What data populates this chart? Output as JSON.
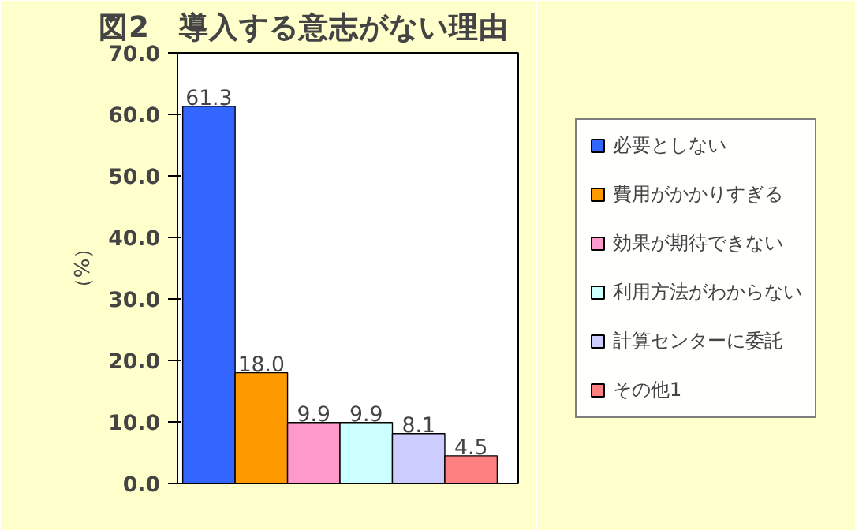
{
  "chart_data": {
    "type": "bar",
    "title": "図2　導入する意志がない理由",
    "ylabel": "（%）",
    "categories": [
      null
    ],
    "series": [
      {
        "name": "必要としない",
        "color": "#3366ff",
        "values": [
          61.3
        ],
        "value_labels": [
          "61.3"
        ]
      },
      {
        "name": "費用がかかりすぎる",
        "color": "#ff9900",
        "values": [
          18.0
        ],
        "value_labels": [
          "18.0"
        ]
      },
      {
        "name": "効果が期待できない",
        "color": "#ff99cc",
        "values": [
          9.9
        ],
        "value_labels": [
          "9.9"
        ]
      },
      {
        "name": "利用方法がわからない",
        "color": "#ccffff",
        "values": [
          9.9
        ],
        "value_labels": [
          "9.9"
        ]
      },
      {
        "name": "計算センターに委託",
        "color": "#ccccff",
        "values": [
          8.1
        ],
        "value_labels": [
          "8.1"
        ]
      },
      {
        "name": "その他1",
        "color": "#ff8080",
        "values": [
          4.5
        ],
        "value_labels": [
          "4.5"
        ]
      }
    ],
    "ylim": [
      0,
      70
    ],
    "yticks": [
      {
        "value": 0,
        "label": "0.0"
      },
      {
        "value": 10,
        "label": "10.0"
      },
      {
        "value": 20,
        "label": "20.0"
      },
      {
        "value": 30,
        "label": "30.0"
      },
      {
        "value": 40,
        "label": "40.0"
      },
      {
        "value": 50,
        "label": "50.0"
      },
      {
        "value": 60,
        "label": "60.0"
      },
      {
        "value": 70,
        "label": "70.0"
      }
    ],
    "legend": "right",
    "grid": false
  }
}
